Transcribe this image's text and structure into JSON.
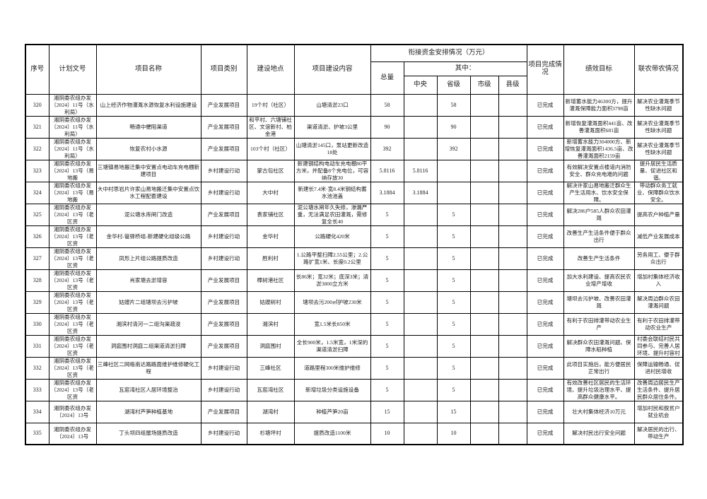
{
  "colors": {
    "page_bg": "#ffffff",
    "ink": "#1c1c1c",
    "border": "#000000"
  },
  "table": {
    "header": {
      "seq": "序号",
      "doc_no": "计划文号",
      "name": "项目名称",
      "category": "项目类别",
      "location": "建设地点",
      "content": "项目建设内容",
      "funding_group": "衔接资金安排情况（万元）",
      "total": "总量",
      "among": "其中：",
      "central": "中央",
      "provincial": "省级",
      "municipal": "市级",
      "county": "县级",
      "completion": "项目完成情况",
      "performance": "绩效目标",
      "farmers": "联农带农情况"
    },
    "rows": [
      {
        "seq": "320",
        "doc_no": "湘阴委农组办发〔2024〕11号（水利局）",
        "name": "山上经济作物灌溉水源恢复水利设施建设",
        "category": "产业发展项目",
        "location": "19个村（社区）",
        "content": "山塘清淤23口",
        "total": "58",
        "central": "",
        "provincial": "58",
        "municipal": "",
        "county": "",
        "completion": "已完成",
        "performance": "新增蓄水能力46300方，提升灌溉保障能力面积3798亩",
        "farmers": "解决农业灌溉季节性缺水问题"
      },
      {
        "seq": "321",
        "doc_no": "湘阴委农组办发〔2024〕11号（水利局）",
        "name": "畅通中梗阻渠道",
        "category": "产业发展项目",
        "location": "和平村、六塘铺社区、文谊新村、柏金港",
        "content": "渠道清淤、护坡3公里",
        "total": "90",
        "central": "",
        "provincial": "90",
        "municipal": "",
        "county": "",
        "completion": "已完成",
        "performance": "新增恢复灌溉面积441亩、改善灌溉面积681亩",
        "farmers": "解决农业灌溉季节性缺水问题"
      },
      {
        "seq": "322",
        "doc_no": "湘阴委农组办发〔2024〕11号（水利局）",
        "name": "恢复农村小水源",
        "category": "产业发展项目",
        "location": "103个村（社区）",
        "content": "山塘清淤145口，泵站更新改造18处",
        "total": "392",
        "central": "",
        "provincial": "392",
        "municipal": "",
        "county": "",
        "completion": "已完成",
        "performance": "新增蓄水能力304000方、新增恢复灌溉面积1436.5亩、改善灌溉面积2159亩",
        "farmers": "解决农业灌溉季节性缺水问题"
      },
      {
        "seq": "323",
        "doc_no": "湘阴委农组办发〔2024〕13号（易地搬",
        "name": "三塘镇易地搬迁集中安置点电动车充电棚新建项目",
        "category": "乡村建设行动",
        "location": "蒙古包社区",
        "content": "新建钢结构电动车充电棚80平方米，并配备8个充电位，可容纳存放30",
        "total": "5.8116",
        "central": "5.8116",
        "provincial": "",
        "municipal": "",
        "county": "",
        "completion": "已完成",
        "performance": "有效解决安置点楼道内消防安全、群众充电难的问题",
        "farmers": "提升居民生活质量、促进社区和谐。"
      },
      {
        "seq": "324",
        "doc_no": "湘阴委农组办发〔2024〕13号（易地搬",
        "name": "大中村思岩片许家山易地搬迁集中安置点饮水工程配套建设",
        "category": "乡村建设行动",
        "location": "大中村",
        "content": "新建长7.4米·宽8.4米钢结构蓄水池池盖",
        "total": "3.1884",
        "central": "3.1884",
        "provincial": "",
        "municipal": "",
        "county": "",
        "completion": "已完成",
        "performance": "解决许家山易地搬迁群众生产生活用水、饮水安全保障。",
        "farmers": "带动群众务工就业、保障群众饮水安全。"
      },
      {
        "seq": "325",
        "doc_no": "湘阴委农组办发〔2024〕13号（老区资",
        "name": "泥公塘水库闸门改造",
        "category": "产业发展项目",
        "location": "袁家铺社区",
        "content": "泥公塘水闸年久失修，渗漏严重，无法满足农田灌溉，需修复全长40",
        "total": "5",
        "central": "",
        "provincial": "5",
        "municipal": "",
        "county": "",
        "completion": "已完成",
        "performance": "解决286户585人群众农田灌溉",
        "farmers": "提高农户种植产量"
      },
      {
        "seq": "326",
        "doc_no": "湘阴委农组办发〔2024〕13号（老区资",
        "name": "金华村-管驿桥组-新建硬化组级公路",
        "category": "乡村建设行动",
        "location": "金华村",
        "content": "公路硬化420米",
        "total": "5",
        "central": "",
        "provincial": "5",
        "municipal": "",
        "county": "",
        "completion": "已完成",
        "performance": "改善生产生活条件便于群众出行",
        "farmers": "减低产业发展成本"
      },
      {
        "seq": "327",
        "doc_no": "湘阴委农组办发〔2024〕13号（老区资",
        "name": "凤形上片组公路提质改造",
        "category": "乡村建设行动",
        "location": "胜利村",
        "content": "1.公路平整扫障2.55公里；2.公路扩宽1米、长度0.2公里",
        "total": "5",
        "central": "",
        "provincial": "5",
        "municipal": "",
        "county": "",
        "completion": "已完成",
        "performance": "改善生产生活条件",
        "farmers": "劳务用工、便于群众出行"
      },
      {
        "seq": "328",
        "doc_no": "湘阴委农组办发〔2024〕13号（老区资",
        "name": "肖家塘去淤增容",
        "category": "产业发展项目",
        "location": "樟树港社区",
        "content": "长86米；宽32米；底深3米；清淤3800立方米",
        "total": "5",
        "central": "",
        "provincial": "5",
        "municipal": "",
        "county": "",
        "completion": "已完成",
        "performance": "加大水利建设、提高农民农业增产增收",
        "farmers": "增加村集体经济收入"
      },
      {
        "seq": "329",
        "doc_no": "湘阴委农组办发〔2024〕13号（老区资",
        "name": "姑嫂片二组塘坝去污护坡",
        "category": "产业发展项目",
        "location": "姑嫂树村",
        "content": "塘坝去污200㎡护坡230米",
        "total": "5",
        "central": "",
        "provincial": "5",
        "municipal": "",
        "county": "",
        "completion": "已完成",
        "performance": "塘坝去污护坡、改善农田灌溉",
        "farmers": "解决周边群众农田灌溉问题"
      },
      {
        "seq": "330",
        "doc_no": "湘阴委农组办发〔2024〕13号（老区资",
        "name": "湘滨村清河一二组沟渠疏浚",
        "category": "产业发展项目",
        "location": "湘滨村",
        "content": "宽1.5米长850米",
        "total": "5",
        "central": "",
        "provincial": "5",
        "municipal": "",
        "county": "",
        "completion": "已完成",
        "performance": "有利于农田排灌带动农业生产",
        "farmers": "有利于农田排灌带动农业生产"
      },
      {
        "seq": "331",
        "doc_no": "湘阴委农组办发〔2024〕13号（老区资",
        "name": "洞庭围村洞庭二组渠道清淤扫障",
        "category": "产业发展项目",
        "location": "洞庭围村",
        "content": "全长900米，1.5米宽，1米深的渠道清淤扫障",
        "total": "5",
        "central": "",
        "provincial": "5",
        "municipal": "",
        "county": "",
        "completion": "已完成",
        "performance": "解决群众农田灌溉问题、保障水稻种植",
        "farmers": "村委会联结村民共同参与、完善人居环境、提升村容村"
      },
      {
        "seq": "332",
        "doc_no": "湘阴委农组办发〔2024〕13号（老区资",
        "name": "三峰社区二网格南达路路面维护维修硬化工程",
        "category": "乡村建设行动",
        "location": "三峰社区",
        "content": "道路里程300米维护维修",
        "total": "5",
        "central": "",
        "provincial": "5",
        "municipal": "",
        "county": "",
        "completion": "已完成",
        "performance": "此项目实施后，能方便居民正常出行",
        "farmers": "保障运输畅通、促进村民增收"
      },
      {
        "seq": "333",
        "doc_no": "湘阴委农组办发〔2024〕13号（老区资",
        "name": "瓦窑湾社区人居环境整治",
        "category": "乡村建设行动",
        "location": "瓦窑湾社区",
        "content": "新增垃圾分类设施设备",
        "total": "5",
        "central": "",
        "provincial": "5",
        "municipal": "",
        "county": "",
        "completion": "已完成",
        "performance": "有效改善社区居民的生活环境、提升垃圾治理水平、提高群众健康水平。",
        "farmers": "改善周边居民生产生活条件、提升居民群众居住条件。"
      },
      {
        "seq": "334",
        "doc_no": "湘阴委农组办发〔2024〕13号",
        "name": "湖湾村芦笋种植基地",
        "category": "产业发展项目",
        "location": "湖湾村",
        "content": "种植芦笋20亩",
        "total": "15",
        "central": "",
        "provincial": "15",
        "municipal": "",
        "county": "",
        "completion": "已完成",
        "performance": "壮大村集体经济10万元",
        "farmers": "增加村民和脱贫户就业机会"
      },
      {
        "seq": "335",
        "doc_no": "湘阴委农组办发〔2024〕13号",
        "name": "丁头坝四组屋场提质改造",
        "category": "乡村建设行动",
        "location": "杉塘坪村",
        "content": "提质改造1100米",
        "total": "10",
        "central": "",
        "provincial": "10",
        "municipal": "",
        "county": "",
        "completion": "已完成",
        "performance": "解决村民出行安全问题",
        "farmers": "解决居民的出行、带动生产"
      }
    ]
  }
}
